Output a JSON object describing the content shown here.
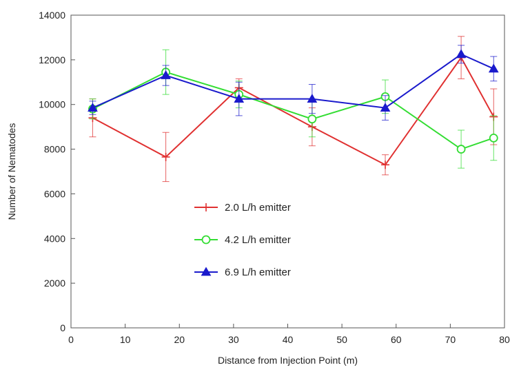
{
  "chart_data": {
    "type": "line",
    "title": "",
    "xlabel": "Distance from Injection Point (m)",
    "ylabel": "Number of Nematodes",
    "xlim": [
      0,
      80
    ],
    "ylim": [
      0,
      14000
    ],
    "xticks": [
      0,
      10,
      20,
      30,
      40,
      50,
      60,
      70,
      80
    ],
    "yticks": [
      0,
      2000,
      4000,
      6000,
      8000,
      10000,
      12000,
      14000
    ],
    "grid": false,
    "legend_position": "center",
    "series": [
      {
        "name": "2.0 L/h emitter",
        "color": "#e03030",
        "marker": "plus",
        "x": [
          4,
          17.5,
          31,
          44.5,
          58,
          72,
          78
        ],
        "y": [
          9400,
          7650,
          10750,
          9000,
          7300,
          12100,
          9450
        ],
        "err": [
          850,
          1100,
          400,
          850,
          450,
          950,
          1250
        ]
      },
      {
        "name": "4.2 L/h emitter",
        "color": "#33dd33",
        "marker": "circle",
        "x": [
          4,
          17.5,
          31,
          44.5,
          58,
          72,
          78
        ],
        "y": [
          9800,
          11450,
          10450,
          9350,
          10350,
          8000,
          8500
        ],
        "err": [
          450,
          1000,
          600,
          800,
          750,
          850,
          1000
        ]
      },
      {
        "name": "6.9 L/h emitter",
        "color": "#1a1acc",
        "marker": "triangle",
        "x": [
          4,
          17.5,
          31,
          44.5,
          58,
          72,
          78
        ],
        "y": [
          9850,
          11300,
          10250,
          10250,
          9850,
          12250,
          11600
        ],
        "err": [
          300,
          450,
          750,
          650,
          550,
          400,
          550
        ]
      }
    ]
  }
}
